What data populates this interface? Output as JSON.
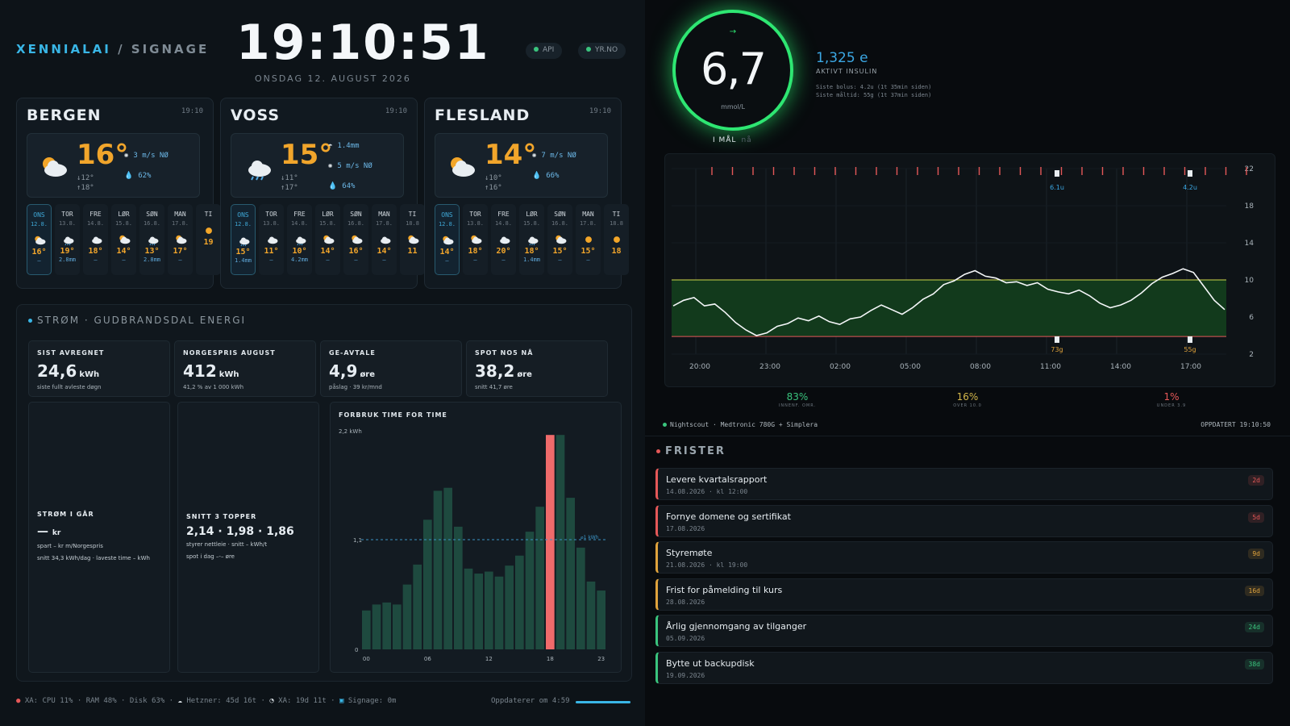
{
  "header": {
    "brand_a": "XENNIALAI",
    "brand_sep": " / ",
    "brand_b": "SIGNAGE",
    "clock": "19:10:51",
    "date": "ONSDAG 12. AUGUST 2026",
    "pill_api": "API",
    "pill_yr": "YR.NO"
  },
  "weather": [
    {
      "city": "BERGEN",
      "time": "19:10",
      "temp": "16°",
      "lo": "↓12°",
      "hi": "↑18°",
      "details": [
        {
          "k": "✺",
          "v": "3 m/s NØ"
        },
        {
          "k": "💧",
          "v": "62%"
        }
      ],
      "days": [
        {
          "n": "ONS",
          "d": "12.8.",
          "t": "16°",
          "p": "—",
          "icon": "sun-cloud"
        },
        {
          "n": "TOR",
          "d": "13.8.",
          "t": "19°",
          "p": "2.8mm",
          "icon": "rain-cloud"
        },
        {
          "n": "FRE",
          "d": "14.8.",
          "t": "18°",
          "p": "—",
          "icon": "cloud"
        },
        {
          "n": "LØR",
          "d": "15.8.",
          "t": "14°",
          "p": "—",
          "icon": "sun-cloud"
        },
        {
          "n": "SØN",
          "d": "16.8.",
          "t": "13°",
          "p": "2.8mm",
          "icon": "rain-cloud"
        },
        {
          "n": "MAN",
          "d": "17.8.",
          "t": "17°",
          "p": "—",
          "icon": "sun-cloud"
        },
        {
          "n": "TI",
          "d": "",
          "t": "19",
          "p": "",
          "icon": "sun"
        }
      ]
    },
    {
      "city": "VOSS",
      "time": "19:10",
      "temp": "15°",
      "lo": "↓11°",
      "hi": "↑17°",
      "details": [
        {
          "k": "☂",
          "v": "1.4mm"
        },
        {
          "k": "✺",
          "v": "5 m/s NØ"
        },
        {
          "k": "💧",
          "v": "64%"
        }
      ],
      "days": [
        {
          "n": "ONS",
          "d": "12.8.",
          "t": "15°",
          "p": "1.4mm",
          "icon": "rain-cloud"
        },
        {
          "n": "TOR",
          "d": "13.8.",
          "t": "11°",
          "p": "—",
          "icon": "cloud"
        },
        {
          "n": "FRE",
          "d": "14.8.",
          "t": "10°",
          "p": "4.2mm",
          "icon": "rain-cloud"
        },
        {
          "n": "LØR",
          "d": "15.8.",
          "t": "14°",
          "p": "—",
          "icon": "sun-cloud"
        },
        {
          "n": "SØN",
          "d": "16.8.",
          "t": "16°",
          "p": "—",
          "icon": "sun-cloud"
        },
        {
          "n": "MAN",
          "d": "17.8.",
          "t": "14°",
          "p": "—",
          "icon": "cloud"
        },
        {
          "n": "TI",
          "d": "18.8",
          "t": "11",
          "p": "",
          "icon": "sun-cloud"
        }
      ]
    },
    {
      "city": "FLESLAND",
      "time": "19:10",
      "temp": "14°",
      "lo": "↓10°",
      "hi": "↑16°",
      "details": [
        {
          "k": "✺",
          "v": "7 m/s NØ"
        },
        {
          "k": "💧",
          "v": "66%"
        }
      ],
      "days": [
        {
          "n": "ONS",
          "d": "12.8.",
          "t": "14°",
          "p": "—",
          "icon": "sun-cloud"
        },
        {
          "n": "TOR",
          "d": "13.8.",
          "t": "18°",
          "p": "—",
          "icon": "sun-cloud"
        },
        {
          "n": "FRE",
          "d": "14.8.",
          "t": "20°",
          "p": "—",
          "icon": "cloud"
        },
        {
          "n": "LØR",
          "d": "15.8.",
          "t": "18°",
          "p": "1.4mm",
          "icon": "rain-cloud"
        },
        {
          "n": "SØN",
          "d": "16.8.",
          "t": "15°",
          "p": "—",
          "icon": "sun-cloud"
        },
        {
          "n": "MAN",
          "d": "17.8.",
          "t": "15°",
          "p": "—",
          "icon": "sun"
        },
        {
          "n": "TI",
          "d": "18.8",
          "t": "18",
          "p": "",
          "icon": "sun"
        }
      ]
    }
  ],
  "strom": {
    "title": "STRØM · GUDBRANDSDAL ENERGI",
    "kpis": [
      {
        "t": "SIST AVREGNET",
        "v": "24,6",
        "u": "kWh",
        "s": "siste fullt avleste døgn"
      },
      {
        "t": "NORGESPRIS AUGUST",
        "v": "412",
        "u": "kWh",
        "s": "41,2 % av 1 000 kWh"
      },
      {
        "t": "GE-AVTALE",
        "v": "4,9",
        "u": "øre",
        "s": "påslag · 39 kr/mnd"
      },
      {
        "t": "SPOT NO5 NÅ",
        "v": "38,2",
        "u": "øre",
        "s": "snitt 41,7 øre"
      }
    ],
    "yesterday": {
      "t": "STRØM I GÅR",
      "v": "—",
      "u": "kr",
      "s1": "spart – kr m/Norgespris",
      "s2": "snitt 34,3 kWh/dag · laveste time – kWh"
    },
    "top3": {
      "t": "SNITT 3 TOPPER",
      "v": "2,14 · 1,98 · 1,86",
      "s1": "styrer nettleie · snitt – kWh/t",
      "s2": "spot i dag –-– øre"
    }
  },
  "chart_data": {
    "type": "bar",
    "title": "FORBRUK TIME FOR TIME",
    "top_label": "2,2 kWh",
    "mid_label": "1,1",
    "zero_label": "0",
    "ref_label": "⌀1 kWh",
    "ylim": [
      0,
      2.2
    ],
    "reference": 1.1,
    "highlight_index": 18,
    "categories": [
      "00",
      "01",
      "02",
      "03",
      "04",
      "05",
      "06",
      "07",
      "08",
      "09",
      "10",
      "11",
      "12",
      "13",
      "14",
      "15",
      "16",
      "17",
      "18",
      "19",
      "20",
      "21",
      "22",
      "23"
    ],
    "tick_labels": [
      "00",
      "06",
      "12",
      "18",
      "23"
    ],
    "values": [
      0.39,
      0.45,
      0.47,
      0.45,
      0.65,
      0.85,
      1.3,
      1.59,
      1.62,
      1.23,
      0.81,
      0.76,
      0.78,
      0.73,
      0.84,
      0.94,
      1.18,
      1.43,
      2.15,
      2.15,
      1.52,
      1.02,
      0.68,
      0.59
    ],
    "colors": {
      "bar": "#1e4a3f",
      "highlight": "#ef6b6b"
    }
  },
  "footer": {
    "sys": "XA: CPU 11% · RAM 48% · Disk 63%",
    "hetzner": "Hetzner: 45d 16t",
    "xa": "XA: 19d 11t",
    "signage": "Signage: 0m",
    "update": "Oppdaterer om 4:59",
    "update_progress": 1
  },
  "cgm": {
    "value": "6,7",
    "unit": "mmol/L",
    "arrow": "→",
    "status": "I MÅL",
    "status_time": "nå",
    "insulin_value": "1,325 e",
    "insulin_label": "AKTIVT INSULIN",
    "last_bolus": "Siste bolus: 4.2u (1t 35min siden)",
    "last_meal": "Siste måltid: 55g (1t 37min siden)",
    "y_ticks": [
      "22",
      "18",
      "14",
      "10",
      "6",
      "2"
    ],
    "x_ticks": [
      "20:00",
      "23:00",
      "02:00",
      "05:00",
      "08:00",
      "11:00",
      "14:00",
      "17:00"
    ],
    "target_range": [
      3.9,
      10.0
    ],
    "markers": [
      {
        "label": "6.1u"
      },
      {
        "label": "4.2u"
      },
      {
        "label": "73g"
      },
      {
        "label": "55g"
      }
    ],
    "stats": [
      {
        "v": "83%",
        "l": "INNENF. OMR.",
        "color": "#3ac47d"
      },
      {
        "v": "16%",
        "l": "OVER 10.0",
        "color": "#d2b64a"
      },
      {
        "v": "1%",
        "l": "UNDER 3.9",
        "color": "#e55858"
      }
    ],
    "source": "Nightscout · Medtronic 780G + Simplera",
    "updated": "OPPDATERT 19:10:50"
  },
  "frister": {
    "title": "FRISTER",
    "items": [
      {
        "name": "Levere kvartalsrapport",
        "date": "14.08.2026 · kl 12:00",
        "badge": "2d",
        "color": "#e55858"
      },
      {
        "name": "Fornye domene og sertifikat",
        "date": "17.08.2026",
        "badge": "5d",
        "color": "#e55858"
      },
      {
        "name": "Styremøte",
        "date": "21.08.2026 · kl 19:00",
        "badge": "9d",
        "color": "#e0a33c"
      },
      {
        "name": "Frist for påmelding til kurs",
        "date": "28.08.2026",
        "badge": "16d",
        "color": "#e0a33c"
      },
      {
        "name": "Årlig gjennomgang av tilganger",
        "date": "05.09.2026",
        "badge": "24d",
        "color": "#3ac47d"
      },
      {
        "name": "Bytte ut backupdisk",
        "date": "19.09.2026",
        "badge": "38d",
        "color": "#3ac47d"
      }
    ]
  }
}
